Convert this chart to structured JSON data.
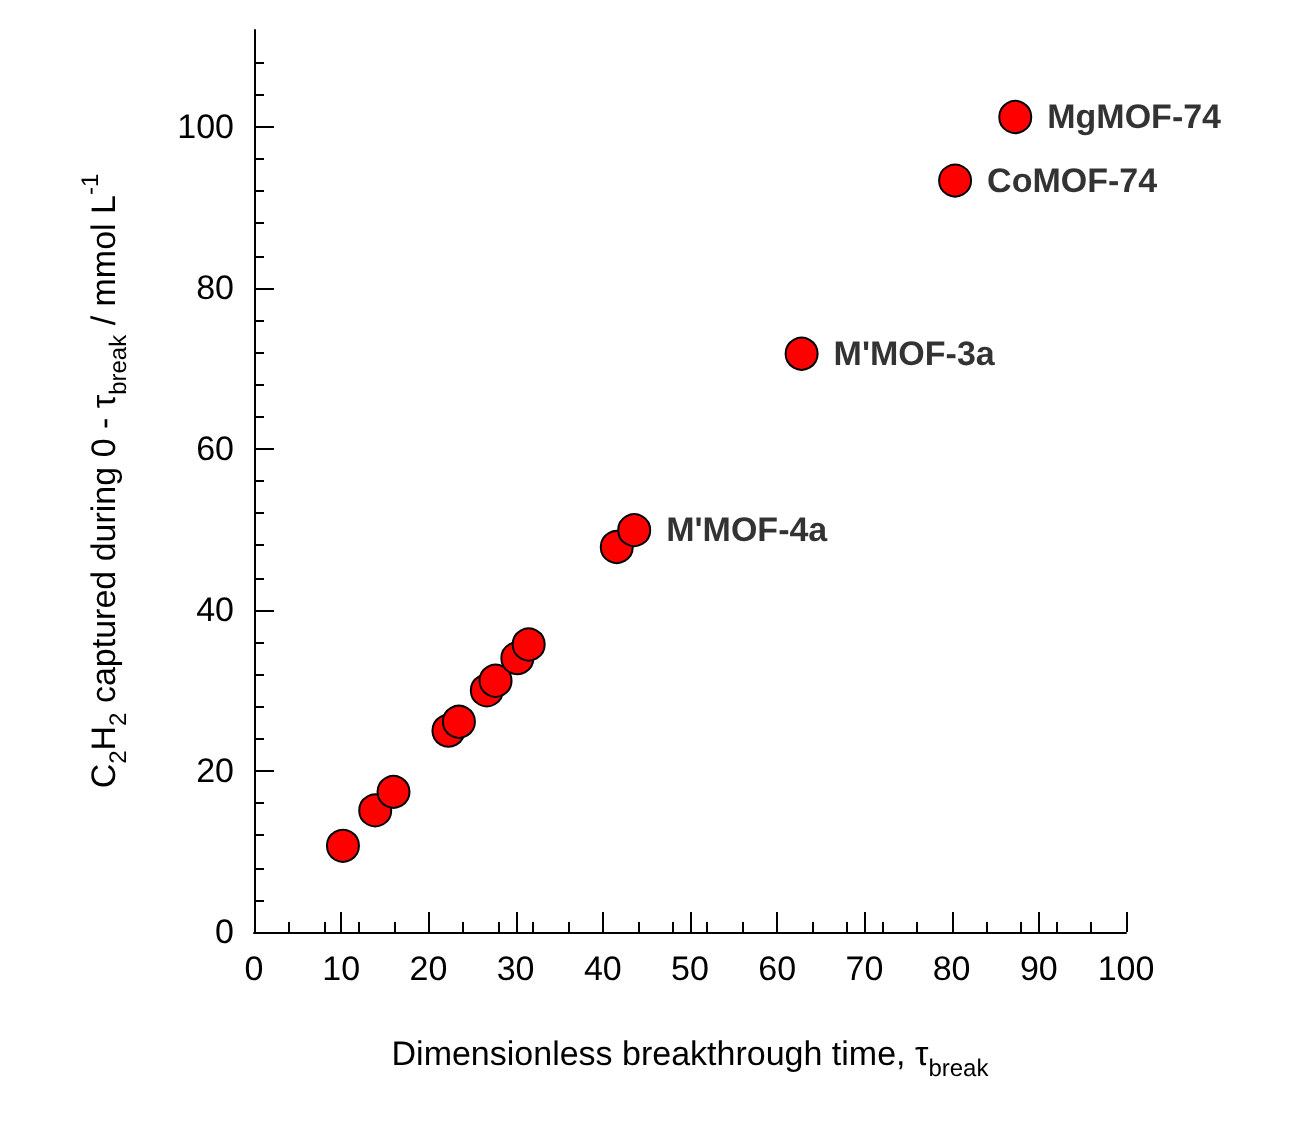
{
  "chart_data": {
    "type": "scatter",
    "xlabel": "Dimensionless breakthrough time, τ$_{break}$",
    "ylabel": "C$_{2}$H$_{2}$ captured during 0 - τ$_{break}$ / mmol L$^{-1}$",
    "x": [
      10.2,
      13.9,
      16.0,
      22.3,
      23.5,
      26.7,
      27.7,
      30.2,
      31.5,
      41.6,
      43.6,
      62.8,
      80.4,
      87.3
    ],
    "series": [
      {
        "color": "#ff0000",
        "values": [
          10.7,
          15.1,
          17.4,
          25.0,
          26.1,
          30.0,
          31.2,
          34.0,
          35.7,
          47.8,
          49.9,
          71.8,
          93.3,
          101.2
        ]
      }
    ],
    "marker": "circle",
    "xlim": [
      0,
      100
    ],
    "xticks": [
      0,
      10,
      20,
      30,
      40,
      50,
      60,
      70,
      80,
      90,
      100
    ],
    "ylim": [
      0,
      112
    ],
    "yticks": [
      0,
      20,
      40,
      60,
      80,
      100
    ],
    "annotations": [
      {
        "text": "M'MOF-4a",
        "x": 43.6,
        "y": 49.9
      },
      {
        "text": "M'MOF-3a",
        "x": 62.8,
        "y": 71.8
      },
      {
        "text": "CoMOF-74",
        "x": 80.4,
        "y": 93.3
      },
      {
        "text": "MgMOF-74",
        "x": 87.3,
        "y": 101.2
      }
    ]
  }
}
